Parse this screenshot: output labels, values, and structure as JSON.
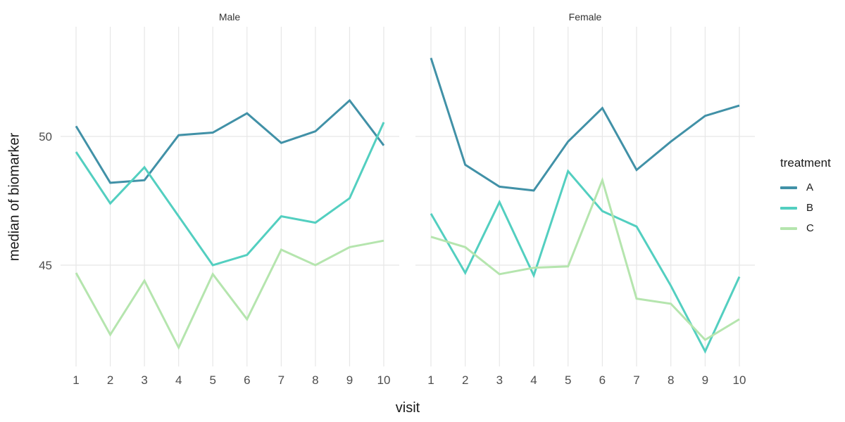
{
  "figure": {
    "x_axis_title": "visit",
    "y_axis_title": "median of biomarker",
    "x_tick_labels": [
      "1",
      "2",
      "3",
      "4",
      "5",
      "6",
      "7",
      "8",
      "9",
      "10"
    ],
    "y_tick_labels": [
      "50",
      "45"
    ]
  },
  "legend": {
    "title": "treatment",
    "items": [
      {
        "label": "A",
        "color": "#4191a7"
      },
      {
        "label": "B",
        "color": "#53cfc0"
      },
      {
        "label": "C",
        "color": "#b5e5ae"
      }
    ]
  },
  "colors": {
    "background": "#ffffff",
    "gridline": "#e7e7e7",
    "tick_label": "#4d4d4d",
    "axis_title": "#1a1a1a",
    "strip_label": "#333333"
  },
  "chart_data": {
    "type": "line",
    "title": "",
    "xlabel": "visit",
    "ylabel": "median of biomarker",
    "x": [
      1,
      2,
      3,
      4,
      5,
      6,
      7,
      8,
      9,
      10
    ],
    "y_ticks": [
      45,
      50
    ],
    "ylim": [
      41.0,
      54.3
    ],
    "grid": "major only, light gray on white",
    "legend_position": "right",
    "legend_title": "treatment",
    "facets": [
      {
        "label": "Male",
        "series": [
          {
            "name": "A",
            "values": [
              50.4,
              48.2,
              48.3,
              50.05,
              50.15,
              50.9,
              49.75,
              50.2,
              51.4,
              49.65
            ]
          },
          {
            "name": "B",
            "values": [
              49.4,
              47.4,
              48.8,
              46.9,
              45.0,
              45.4,
              46.9,
              46.65,
              47.6,
              50.55
            ]
          },
          {
            "name": "C",
            "values": [
              44.7,
              42.3,
              44.4,
              41.8,
              44.65,
              42.9,
              45.6,
              45.0,
              45.7,
              45.95
            ]
          }
        ]
      },
      {
        "label": "Female",
        "series": [
          {
            "name": "A",
            "values": [
              53.05,
              48.9,
              48.05,
              47.9,
              49.8,
              51.1,
              48.7,
              49.8,
              50.8,
              51.2
            ]
          },
          {
            "name": "B",
            "values": [
              47.0,
              44.7,
              47.45,
              44.6,
              48.65,
              47.1,
              46.5,
              44.2,
              41.65,
              44.55
            ]
          },
          {
            "name": "C",
            "values": [
              46.1,
              45.7,
              44.65,
              44.9,
              44.95,
              48.3,
              43.7,
              43.5,
              42.1,
              42.9
            ]
          }
        ]
      }
    ]
  }
}
